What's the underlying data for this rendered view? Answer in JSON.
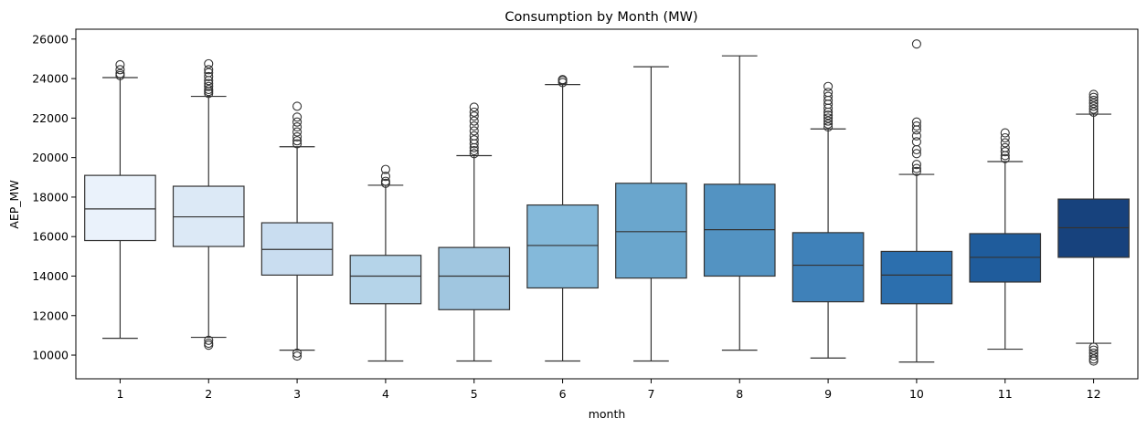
{
  "chart_data": {
    "type": "box",
    "title": "Consumption by Month (MW)",
    "xlabel": "month",
    "ylabel": "AEP_MW",
    "ylim": [
      8800,
      26500
    ],
    "yticks": [
      10000,
      12000,
      14000,
      16000,
      18000,
      20000,
      22000,
      24000,
      26000
    ],
    "grid": false,
    "legend": "none",
    "boxes": [
      {
        "category": "1",
        "whisker_low": 10850,
        "q1": 15800,
        "median": 17400,
        "q3": 19100,
        "whisker_high": 24050,
        "color": "#eaf2fb",
        "outliers": [
          24150,
          24250,
          24450,
          24700
        ]
      },
      {
        "category": "2",
        "whisker_low": 10900,
        "q1": 15500,
        "median": 17000,
        "q3": 18550,
        "whisker_high": 23100,
        "color": "#dce9f6",
        "outliers": [
          10500,
          10600,
          10750,
          23250,
          23350,
          23450,
          23600,
          23750,
          23900,
          24100,
          24300,
          24450,
          24750
        ]
      },
      {
        "category": "3",
        "whisker_low": 10250,
        "q1": 14050,
        "median": 15350,
        "q3": 16700,
        "whisker_high": 20550,
        "color": "#c9ddf0",
        "outliers": [
          9950,
          10100,
          20700,
          20850,
          21050,
          21300,
          21550,
          21800,
          22050,
          22600
        ]
      },
      {
        "category": "4",
        "whisker_low": 9700,
        "q1": 12600,
        "median": 14000,
        "q3": 15050,
        "whisker_high": 18600,
        "color": "#b5d4e9",
        "outliers": [
          18700,
          18800,
          19050,
          19400
        ]
      },
      {
        "category": "5",
        "whisker_low": 9700,
        "q1": 12300,
        "median": 14000,
        "q3": 15450,
        "whisker_high": 20100,
        "color": "#a0c6e0",
        "outliers": [
          20200,
          20350,
          20500,
          20700,
          20900,
          21100,
          21350,
          21600,
          21850,
          22100,
          22300,
          22550
        ]
      },
      {
        "category": "6",
        "whisker_low": 9700,
        "q1": 13400,
        "median": 15550,
        "q3": 17600,
        "whisker_high": 23700,
        "color": "#84b9da",
        "outliers": [
          23800,
          23900,
          23950
        ]
      },
      {
        "category": "7",
        "whisker_low": 9700,
        "q1": 13900,
        "median": 16250,
        "q3": 18700,
        "whisker_high": 24600,
        "color": "#6aa6cd",
        "outliers": []
      },
      {
        "category": "8",
        "whisker_low": 10250,
        "q1": 14000,
        "median": 16350,
        "q3": 18650,
        "whisker_high": 25150,
        "color": "#5393c2",
        "outliers": []
      },
      {
        "category": "9",
        "whisker_low": 9850,
        "q1": 12700,
        "median": 14550,
        "q3": 16200,
        "whisker_high": 21450,
        "color": "#3f81b9",
        "outliers": [
          21550,
          21700,
          21850,
          22000,
          22150,
          22300,
          22500,
          22700,
          22900,
          23100,
          23300,
          23600
        ]
      },
      {
        "category": "10",
        "whisker_low": 9650,
        "q1": 12600,
        "median": 14050,
        "q3": 15250,
        "whisker_high": 19150,
        "color": "#2c6fae",
        "outliers": [
          19300,
          19450,
          19650,
          20200,
          20400,
          20800,
          21100,
          21400,
          21600,
          21800,
          25750
        ]
      },
      {
        "category": "11",
        "whisker_low": 10300,
        "q1": 13700,
        "median": 14950,
        "q3": 16150,
        "whisker_high": 19800,
        "color": "#1f5c9c",
        "outliers": [
          19950,
          20100,
          20300,
          20500,
          20750,
          21000,
          21250
        ]
      },
      {
        "category": "12",
        "whisker_low": 10600,
        "q1": 14950,
        "median": 16450,
        "q3": 17900,
        "whisker_high": 22200,
        "color": "#17427d",
        "outliers": [
          9700,
          9800,
          9950,
          10100,
          10250,
          10400,
          22300,
          22450,
          22600,
          22750,
          22900,
          23050,
          23200
        ]
      }
    ]
  }
}
